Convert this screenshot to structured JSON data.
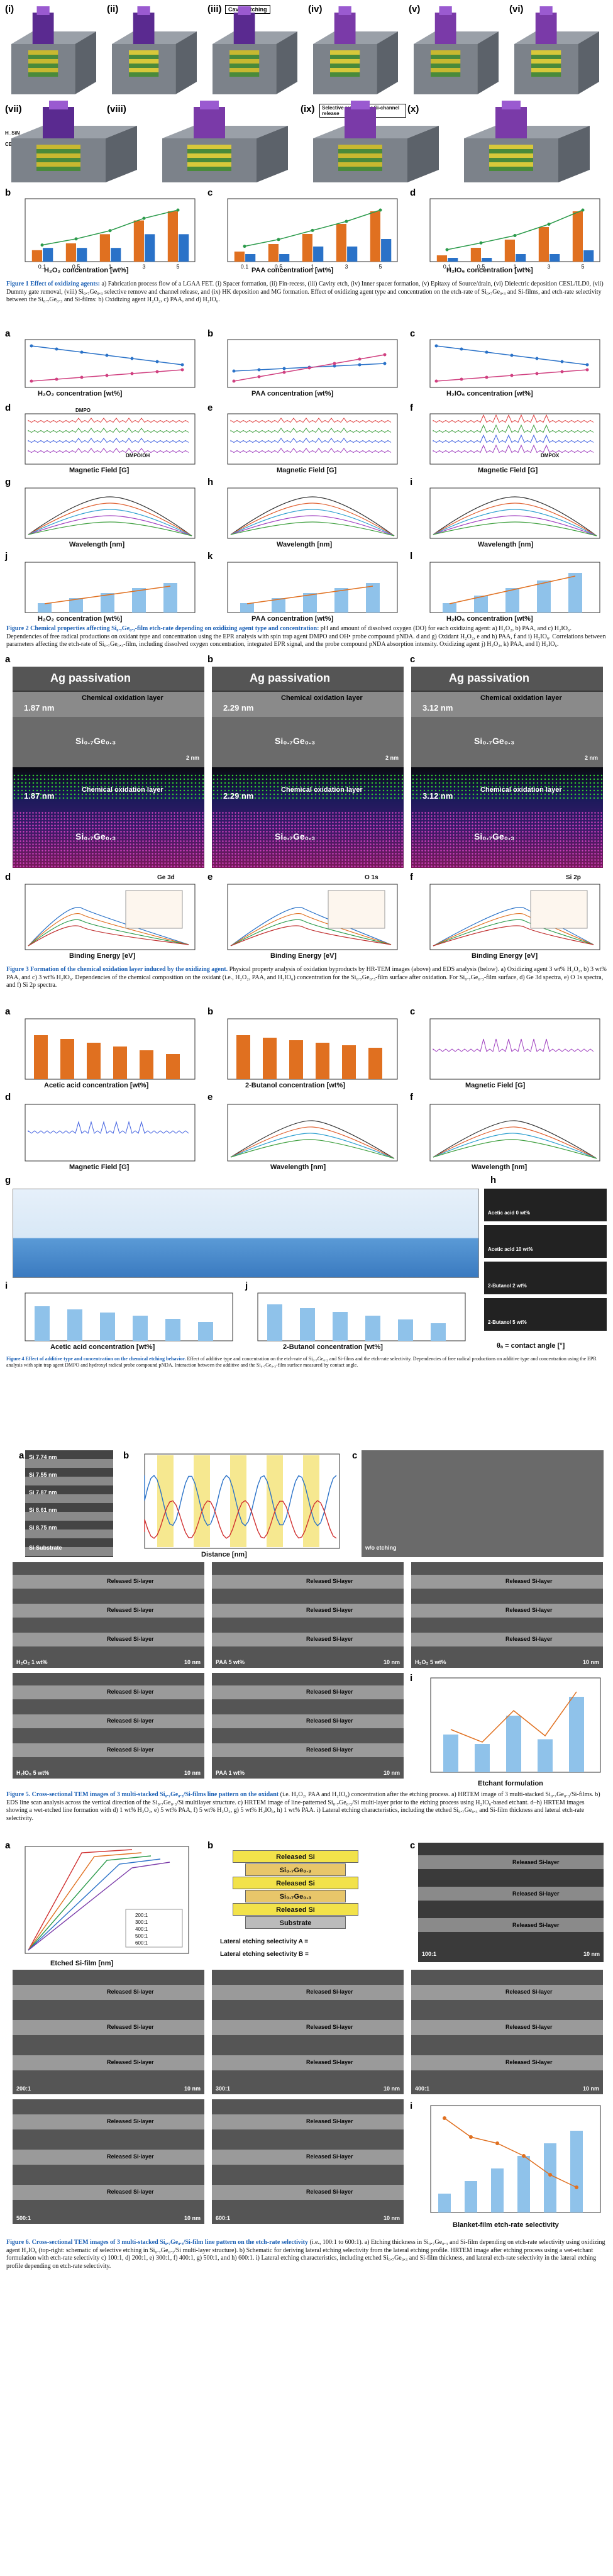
{
  "figure1": {
    "panel_labels": [
      "(i)",
      "(ii)",
      "(iii)",
      "(iv)",
      "(v)",
      "(vi)",
      "(vii)",
      "(viii)",
      "(ix)",
      "(x)"
    ],
    "callouts": [
      "Cavity etching",
      "Selective removal for Si-channel release"
    ],
    "side_labels": [
      "H_SiN",
      "CESL",
      "STI",
      "STI",
      "STI"
    ],
    "chart_labels": [
      "b",
      "c",
      "d"
    ],
    "xlabels": [
      "H₂O₂ concentration [wt%]",
      "PAA concentration [wt%]",
      "H₂IO₆ concentration [wt%]"
    ],
    "caption_title": "Figure 1 Effect of oxidizing agents:",
    "caption": "a) Fabrication process flow of a LGAA FET. (i) Spacer formation, (ii) Fin-recess, (iii) Cavity etch, (iv) Inner spacer formation, (v) Epitaxy of Source/drain, (vi) Dielectric deposition CESL/ILD0, (vii) Dummy gate removal, (viii) Si₀.₇Ge₀.₃ selective remove and channel release, and (ix) HK deposition and MG formation. Effect of oxidizing agent type and concentration on the etch-rate of Si₀.₇Ge₀.₃ and Si-films, and etch-rate selectivity between the Si₀.₇Ge₀.₃ and Si-films: b) Oxidizing agent H₂O₂, c) PAA, and d) H₂IO₆."
  },
  "figure2": {
    "panel_labels": [
      "a",
      "b",
      "c",
      "d",
      "e",
      "f",
      "g",
      "h",
      "i",
      "j",
      "k",
      "l"
    ],
    "xlabels_row1": [
      "H₂O₂ concentration [wt%]",
      "PAA concentration [wt%]",
      "H₂IO₆ concentration [wt%]"
    ],
    "xlabels_row2": [
      "Magnetic Field [G]",
      "Magnetic Field [G]",
      "Magnetic Field [G]"
    ],
    "xlabels_row3": [
      "Wavelength [nm]",
      "Wavelength [nm]",
      "Wavelength [nm]"
    ],
    "xlabels_row4": [
      "H₂O₂ concentration [wt%]",
      "PAA concentration [wt%]",
      "H₂IO₆ concentration [wt%]"
    ],
    "tags": [
      "DMPO",
      "DMPO-OH",
      "DMPO/OH",
      "DMPOX",
      "RNO",
      "RNO-OH"
    ],
    "caption_title": "Figure 2 Chemical properties affecting Si₀.₇Ge₀.₃-film etch-rate depending on oxidizing agent type and concentration:",
    "caption": "pH and amount of dissolved oxygen (DO) for each oxidizing agent: a) H₂O₂, b) PAA, and c) H₂IO₆. Dependencies of free radical productions on oxidant type and concentration using the EPR analysis with spin trap agent DMPO and OH• probe compound pNDA. d and g) Oxidant H₂O₂, e and h) PAA, f and i) H₂IO₆. Correlations between parameters affecting the etch-rate of Si₀.₇Ge₀.₃-film, including dissolved oxygen concentration, integrated EPR signal, and the probe compound pNDA absorption intensity. Oxidizing agent j) H₂O₂, k) PAA, and l) H₂IO₆."
  },
  "figure3": {
    "panel_labels": [
      "a",
      "b",
      "c",
      "d",
      "e",
      "f"
    ],
    "headers": [
      "Ag passivation",
      "Ag passivation",
      "Ag passivation"
    ],
    "layer_text": [
      "Chemical oxidation layer",
      "Si₀.₇Ge₀.₃"
    ],
    "thickness": [
      "1.87 nm",
      "2.29 nm",
      "3.12 nm"
    ],
    "scale": "2 nm",
    "xps_titles": [
      "Ge 3d",
      "O 1s",
      "Si 2p"
    ],
    "xps_xlabel": "Binding Energy [eV]",
    "caption_title": "Figure 3 Formation of the chemical oxidation layer induced by the oxidizing agent.",
    "caption": "Physical property analysis of oxidation byproducts by HR-TEM images (above) and EDS analysis (below). a) Oxidizing agent 3 wt% H₂O₂, b) 3 wt% PAA, and c) 3 wt% H₂IO₆. Dependencies of the chemical composition on the oxidant (i.e., H₂O₂, PAA, and H₂IO₆) concentration for the Si₀.₇Ge₀.₃-film surface after oxidation. For Si₀.₇Ge₀.₃-film surface, d) Ge 3d spectra, e) O 1s spectra, and f) Si 2p spectra."
  },
  "figure4": {
    "panel_labels": [
      "a",
      "b",
      "c",
      "d",
      "e",
      "f",
      "g",
      "h",
      "i",
      "j"
    ],
    "xlabels": [
      "Acetic acid concentration [wt%]",
      "2-Butanol concentration [wt%]",
      "Magnetic Field [G]",
      "Magnetic Field [G]",
      "Wavelength [nm]",
      "Wavelength [nm]"
    ],
    "contact_labels": [
      "Acetic acid 0 wt%",
      "Acetic acid 10 wt%",
      "2-Butanol 2 wt%",
      "2-Butanol 5 wt%"
    ],
    "angle_xlabel": "θₐ = contact angle [°]",
    "bottom_xlabels": [
      "Acetic acid concentration [wt%]",
      "2-Butanol concentration [wt%]"
    ],
    "caption_title": "Figure 4 Effect of additive type and concentration on the chemical etching behavior.",
    "caption": "Effect of additive type and concentration on the etch-rate of Si₀.₇Ge₀.₃ and Si-films and the etch-rate selectivity. Dependencies of free radical productions on additive type and concentration using the EPR analysis with spin trap agent DMPO and hydroxyl radical probe compound pNDA. Interaction between the additive and the Si₀.₇Ge₀.₃-film surface measured by contact angle."
  },
  "figure5": {
    "panel_labels": [
      "a",
      "b",
      "c",
      "d",
      "e",
      "f",
      "g",
      "h",
      "i"
    ],
    "stack_labels": [
      "Si 7.74 nm",
      "Si 7.55 nm",
      "Si 7.87 nm",
      "Si 8.61 nm",
      "Si 8.75 nm",
      "Si Substrate"
    ],
    "layer_labels": [
      "Released Si-layer",
      "Released Si-layer",
      "Released Si-layer"
    ],
    "panel_tags": [
      "w/o etching",
      "H₂O₂ 1 wt%",
      "PAA 5 wt%",
      "H₂O₂ 5 wt%",
      "H₂IO₆ 5 wt%",
      "PAA 1 wt%"
    ],
    "scale": "10 nm",
    "eds_xlabel": "Distance [nm]",
    "chart_xlabel": "Etchant formulation",
    "caption_title": "Figure 5. Cross-sectional TEM images of 3 multi-stacked Si₀.₇Ge₀.₃/Si-films line pattern on the oxidant",
    "caption": "(i.e. H₂O₂, PAA and H₂IO₆) concentration after the etching process. a) HRTEM image of 3 multi-stacked Si₀.₇Ge₀.₃/Si-films. b) EDS line scan analysis across the vertical direction of the Si₀.₇Ge₀.₃/Si multilayer structure. c) HRTEM image of line-patterned Si₀.₇Ge₀.₃/Si multi-layer prior to the etching process using H₂IO₆-based etchant. d–h) HRTEM images showing a wet-etched line formation with d) 1 wt% H₂O₂, e) 5 wt% PAA, f) 5 wt% H₂O₂, g) 5 wt% H₂IO₆, h) 1 wt% PAA. i) Lateral etching characteristics, including the etched Si₀.₇Ge₀.₃ and Si-film thickness and lateral etch-rate selectivity."
  },
  "figure6": {
    "panel_labels": [
      "a",
      "b",
      "c",
      "d",
      "e",
      "f",
      "g",
      "h",
      "i"
    ],
    "diagram_layers": [
      "Released Si",
      "Si₀.₇Ge₀.₃",
      "Released Si",
      "Si₀.₇Ge₀.₃",
      "Released Si",
      "Substrate"
    ],
    "eq1": "Lateral etching selectivity A =",
    "eq2": "Lateral etching selectivity B =",
    "legend": [
      "200:1",
      "300:1",
      "400:1",
      "500:1",
      "600:1"
    ],
    "panel_tags": [
      "100:1",
      "200:1",
      "300:1",
      "400:1",
      "500:1",
      "600:1"
    ],
    "layer_label": "Released Si-layer",
    "scale": "10 nm",
    "xlabel_a": "Etched Si-film [nm]",
    "ylabel_a": "Etched Si₀.₇Ge₀.₃-film [nm]",
    "xlabel_i": "Blanket-film etch-rate selectivity",
    "caption_title": "Figure 6. Cross-sectional TEM images of 3 multi-stacked Si₀.₇Ge₀.₃/Si-film line pattern on the etch-rate selectivity",
    "caption": "(i.e., 100:1 to 600:1). a) Etching thickness in Si₀.₇Ge₀.₃ and Si-film depending on etch-rate selectivity using oxidizing agent H₂IO₆ (top-right: schematic of selective etching in Si₀.₇Ge₀.₃/Si multi-layer structure). b) Schematic for deriving lateral etching selectivity from the lateral etching profile. HRTEM image after etching process using a wet-etchant formulation with etch-rate selectivity c) 100:1, d) 200:1, e) 300:1, f) 400:1, g) 500:1, and h) 600:1. i) Lateral etching characteristics, including etched Si₀.₇Ge₀.₃ and Si-film thickness, and lateral etch-rate selectivity in the lateral etching profile depending on etch-rate selectivity."
  },
  "colors": {
    "caption_accent": "#1a5fb4",
    "series_orange": "#e07020",
    "series_blue": "#2a72c8",
    "series_green": "#2a9a4a"
  },
  "chart_data": [
    {
      "type": "bar",
      "title": "",
      "categories": [
        "0.1",
        "0.5",
        "1",
        "3",
        "5"
      ],
      "series": [
        {
          "values": [
            5,
            8,
            12,
            18,
            22
          ]
        },
        {
          "values": [
            1,
            1,
            1,
            2,
            2
          ]
        }
      ]
    },
    {
      "type": "bar",
      "title": "",
      "categories": [
        "0.1",
        "0.5",
        "1",
        "3",
        "5"
      ],
      "series": [
        {
          "values": [
            8,
            14,
            22,
            30,
            40
          ]
        },
        {
          "values": [
            1,
            1,
            2,
            2,
            3
          ]
        }
      ]
    },
    {
      "type": "bar",
      "title": "",
      "categories": [
        "0.1",
        "0.5",
        "1",
        "3",
        "5"
      ],
      "series": [
        {
          "values": [
            10,
            22,
            35,
            55,
            80
          ]
        },
        {
          "values": [
            1,
            1,
            2,
            2,
            3
          ]
        }
      ]
    }
  ]
}
